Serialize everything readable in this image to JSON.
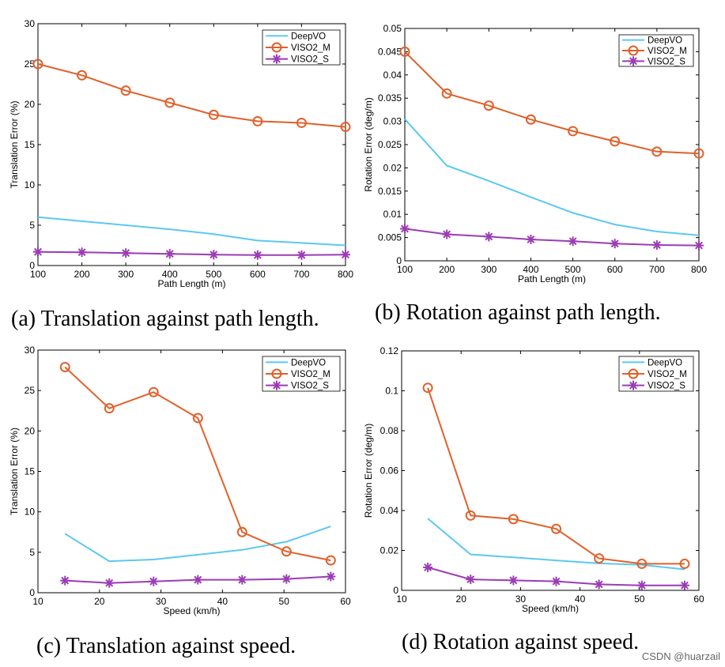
{
  "colors": {
    "deepvo": "#5bc8f0",
    "viso2_m": "#e0602a",
    "viso2_s": "#9b3cb4"
  },
  "captions": [
    "(a) Translation against path length.",
    "(b) Rotation against path length.",
    "(c) Translation against speed.",
    "(d) Rotation against speed."
  ],
  "watermark": "CSDN @huarzail",
  "chart_data": [
    {
      "type": "line",
      "xlabel": "Path Length (m)",
      "ylabel": "Translation Error (%)",
      "xlim": [
        100,
        800
      ],
      "ylim": [
        0,
        30
      ],
      "xticks": [
        "100",
        "200",
        "300",
        "400",
        "500",
        "600",
        "700",
        "800"
      ],
      "yticks": [
        "0",
        "5",
        "10",
        "15",
        "20",
        "25",
        "30"
      ],
      "xtick_values": [
        100,
        200,
        300,
        400,
        500,
        600,
        700,
        800
      ],
      "ytick_values": [
        0,
        5,
        10,
        15,
        20,
        25,
        30
      ],
      "legend": [
        "DeepVO",
        "VISO2_M",
        "VISO2_S"
      ],
      "legend_position": "top-right",
      "series": [
        {
          "name": "DeepVO",
          "x": [
            100,
            200,
            300,
            400,
            500,
            600,
            700,
            800
          ],
          "values": [
            6.0,
            5.5,
            5.0,
            4.5,
            3.9,
            3.1,
            2.8,
            2.5
          ]
        },
        {
          "name": "VISO2_M",
          "x": [
            100,
            200,
            300,
            400,
            500,
            600,
            700,
            800
          ],
          "values": [
            25.0,
            23.6,
            21.7,
            20.2,
            18.7,
            17.9,
            17.7,
            17.2
          ]
        },
        {
          "name": "VISO2_S",
          "x": [
            100,
            200,
            300,
            400,
            500,
            600,
            700,
            800
          ],
          "values": [
            1.7,
            1.65,
            1.55,
            1.45,
            1.35,
            1.3,
            1.3,
            1.35
          ]
        }
      ]
    },
    {
      "type": "line",
      "xlabel": "Path Length (m)",
      "ylabel": "Rotation Error (deg/m)",
      "xlim": [
        100,
        800
      ],
      "ylim": [
        0,
        0.05
      ],
      "xticks": [
        "100",
        "200",
        "300",
        "400",
        "500",
        "600",
        "700",
        "800"
      ],
      "yticks": [
        "0",
        "0.005",
        "0.01",
        "0.015",
        "0.02",
        "0.025",
        "0.03",
        "0.035",
        "0.04",
        "0.045",
        "0.05"
      ],
      "xtick_values": [
        100,
        200,
        300,
        400,
        500,
        600,
        700,
        800
      ],
      "ytick_values": [
        0,
        0.005,
        0.01,
        0.015,
        0.02,
        0.025,
        0.03,
        0.035,
        0.04,
        0.045,
        0.05
      ],
      "legend": [
        "DeepVO",
        "VISO2_M",
        "VISO2_S"
      ],
      "legend_position": "top-right",
      "series": [
        {
          "name": "DeepVO",
          "x": [
            100,
            200,
            300,
            400,
            500,
            600,
            700,
            800
          ],
          "values": [
            0.0305,
            0.0205,
            0.0172,
            0.0137,
            0.0103,
            0.0078,
            0.0063,
            0.0055
          ]
        },
        {
          "name": "VISO2_M",
          "x": [
            100,
            200,
            300,
            400,
            500,
            600,
            700,
            800
          ],
          "values": [
            0.045,
            0.036,
            0.0334,
            0.0304,
            0.0279,
            0.0257,
            0.0235,
            0.0231
          ]
        },
        {
          "name": "VISO2_S",
          "x": [
            100,
            200,
            300,
            400,
            500,
            600,
            700,
            800
          ],
          "values": [
            0.0069,
            0.0057,
            0.0052,
            0.0046,
            0.0042,
            0.0037,
            0.0034,
            0.0033
          ]
        }
      ]
    },
    {
      "type": "line",
      "xlabel": "Speed (km/h)",
      "ylabel": "Translation Error (%)",
      "xlim": [
        10,
        60
      ],
      "ylim": [
        0,
        30
      ],
      "xticks": [
        "10",
        "20",
        "30",
        "40",
        "50",
        "60"
      ],
      "yticks": [
        "0",
        "5",
        "10",
        "15",
        "20",
        "25",
        "30"
      ],
      "xtick_values": [
        10,
        20,
        30,
        40,
        50,
        60
      ],
      "ytick_values": [
        0,
        5,
        10,
        15,
        20,
        25,
        30
      ],
      "legend": [
        "DeepVO",
        "VISO2_M",
        "VISO2_S"
      ],
      "legend_position": "top-right",
      "series": [
        {
          "name": "DeepVO",
          "x": [
            14.4,
            21.6,
            28.8,
            36.0,
            43.2,
            50.4,
            57.6
          ],
          "values": [
            7.3,
            3.9,
            4.1,
            4.7,
            5.3,
            6.3,
            8.2
          ]
        },
        {
          "name": "VISO2_M",
          "x": [
            14.4,
            21.6,
            28.8,
            36.0,
            43.2,
            50.4,
            57.6
          ],
          "values": [
            27.9,
            22.8,
            24.8,
            21.6,
            7.5,
            5.1,
            4.0
          ]
        },
        {
          "name": "VISO2_S",
          "x": [
            14.4,
            21.6,
            28.8,
            36.0,
            43.2,
            50.4,
            57.6
          ],
          "values": [
            1.5,
            1.2,
            1.4,
            1.6,
            1.6,
            1.7,
            2.0
          ]
        }
      ]
    },
    {
      "type": "line",
      "xlabel": "Speed (km/h)",
      "ylabel": "Rotation Error (deg/m)",
      "xlim": [
        10,
        60
      ],
      "ylim": [
        0,
        0.12
      ],
      "xticks": [
        "10",
        "20",
        "30",
        "40",
        "50",
        "60"
      ],
      "yticks": [
        "0",
        "0.02",
        "0.04",
        "0.06",
        "0.08",
        "0.1",
        "0.12"
      ],
      "xtick_values": [
        10,
        20,
        30,
        40,
        50,
        60
      ],
      "ytick_values": [
        0,
        0.02,
        0.04,
        0.06,
        0.08,
        0.1,
        0.12
      ],
      "legend": [
        "DeepVO",
        "VISO2_M",
        "VISO2_S"
      ],
      "legend_position": "top-right",
      "series": [
        {
          "name": "DeepVO",
          "x": [
            14.4,
            21.6,
            28.8,
            36.0,
            43.2,
            50.4,
            57.6
          ],
          "values": [
            0.036,
            0.018,
            0.0165,
            0.015,
            0.0135,
            0.0128,
            0.0105
          ]
        },
        {
          "name": "VISO2_M",
          "x": [
            14.4,
            21.6,
            28.8,
            36.0,
            43.2,
            50.4,
            57.6
          ],
          "values": [
            0.1015,
            0.0375,
            0.0357,
            0.0308,
            0.016,
            0.0133,
            0.0133
          ]
        },
        {
          "name": "VISO2_S",
          "x": [
            14.4,
            21.6,
            28.8,
            36.0,
            43.2,
            50.4,
            57.6
          ],
          "values": [
            0.0115,
            0.0055,
            0.005,
            0.0045,
            0.003,
            0.0025,
            0.0025
          ]
        }
      ]
    }
  ]
}
